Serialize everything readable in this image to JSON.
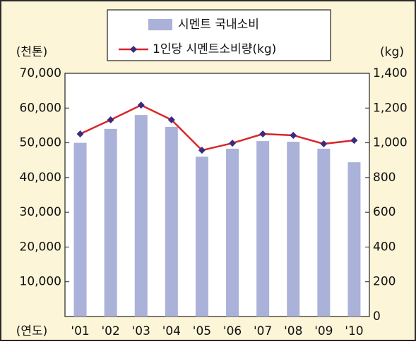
{
  "chart_data": {
    "type": "bar",
    "y_label": "(천톤)",
    "y2_label": "(kg)",
    "x_label": "(연도)",
    "categories": [
      "'01",
      "'02",
      "'03",
      "'04",
      "'05",
      "'06",
      "'07",
      "'08",
      "'09",
      "'10"
    ],
    "series": [
      {
        "name": "시멘트 국내소비",
        "type": "bar",
        "color": "#aab2d9",
        "values": [
          50000,
          54000,
          58000,
          54600,
          46000,
          48300,
          50500,
          50300,
          48300,
          44400
        ]
      },
      {
        "name": "1인당 시멘트소비량(kg)",
        "type": "line",
        "axis": "y2",
        "color": "#d9262c",
        "marker_color": "#3b2b80",
        "values": [
          1051,
          1132,
          1217,
          1132,
          957,
          998,
          1051,
          1043,
          994,
          1014
        ]
      }
    ],
    "ylim": [
      0,
      70000
    ],
    "yticks": [
      {
        "value": 10000,
        "label": "10,000"
      },
      {
        "value": 20000,
        "label": "20,000"
      },
      {
        "value": 30000,
        "label": "30,000"
      },
      {
        "value": 40000,
        "label": "40,000"
      },
      {
        "value": 50000,
        "label": "50,000"
      },
      {
        "value": 60000,
        "label": "60,000"
      },
      {
        "value": 70000,
        "label": "70,000"
      }
    ],
    "y2lim": [
      0,
      1400
    ],
    "y2ticks": [
      0,
      200,
      400,
      600,
      800,
      {
        "value": 1000,
        "label": "1,000"
      },
      {
        "value": 1200,
        "label": "1,200"
      },
      {
        "value": 1400,
        "label": "1,400"
      }
    ],
    "grid": false
  }
}
